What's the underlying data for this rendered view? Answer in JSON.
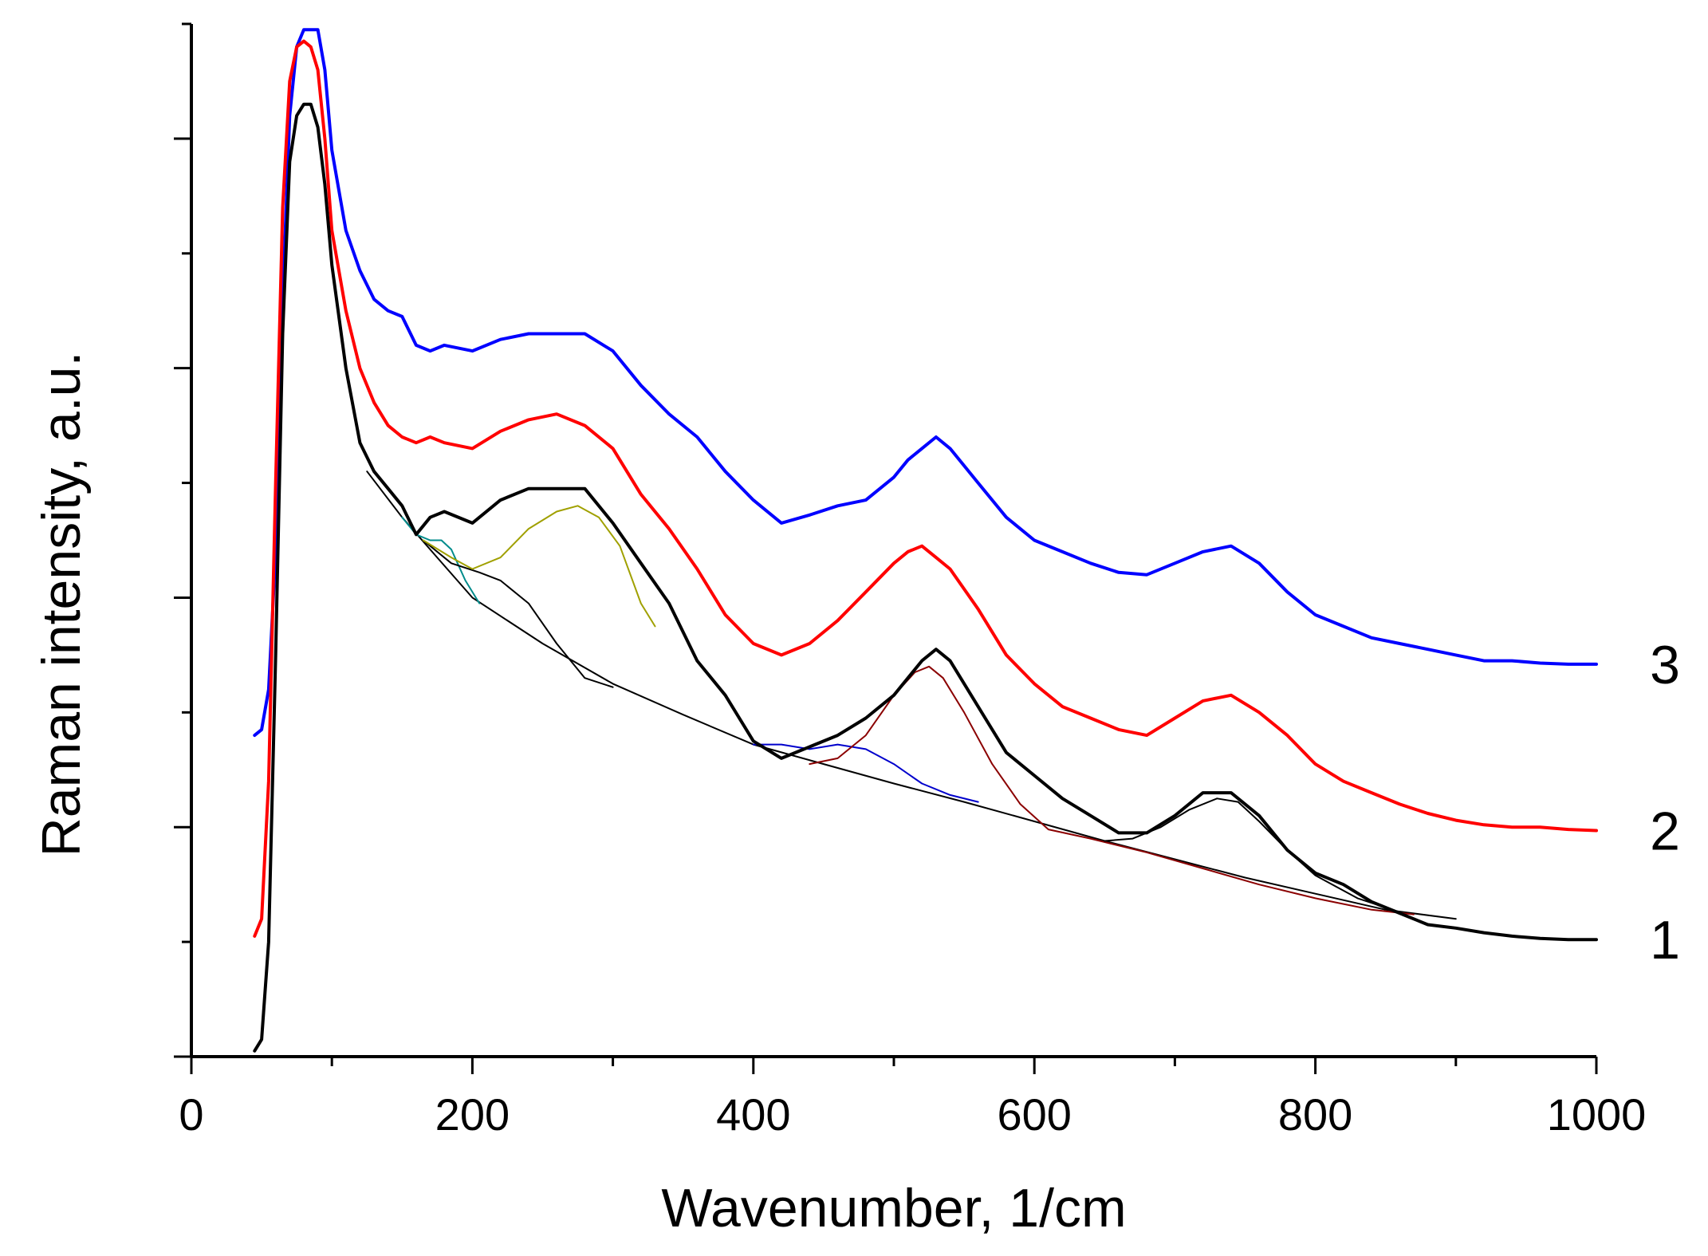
{
  "chart_data": {
    "type": "line",
    "title": "",
    "xlabel": "Wavenumber, 1/cm",
    "ylabel": "Raman intensity, a.u.",
    "xlim": [
      0,
      1000
    ],
    "ylim": [
      0,
      9
    ],
    "x_ticks": [
      0,
      200,
      400,
      600,
      800,
      1000
    ],
    "x_tick_labels": [
      "0",
      "200",
      "400",
      "600",
      "800",
      "1000"
    ],
    "x_minor_step": 100,
    "y_ticks": [
      0,
      1,
      2,
      3,
      4,
      5,
      6,
      7,
      8,
      9
    ],
    "y_tick_labels_shown": false,
    "series": [
      {
        "name": "3",
        "label": "3",
        "color": "#0000ff",
        "x": [
          45,
          50,
          55,
          60,
          65,
          70,
          75,
          80,
          85,
          90,
          95,
          100,
          110,
          120,
          130,
          140,
          150,
          160,
          170,
          180,
          200,
          220,
          240,
          260,
          280,
          300,
          320,
          340,
          360,
          380,
          400,
          420,
          440,
          460,
          480,
          500,
          510,
          520,
          530,
          540,
          560,
          580,
          600,
          620,
          640,
          660,
          680,
          700,
          720,
          740,
          760,
          780,
          800,
          820,
          840,
          860,
          880,
          900,
          920,
          940,
          960,
          980,
          1000
        ],
        "y": [
          2.8,
          2.85,
          3.2,
          4.4,
          6.6,
          8.2,
          8.8,
          8.95,
          8.95,
          8.95,
          8.6,
          7.9,
          7.2,
          6.85,
          6.6,
          6.5,
          6.45,
          6.2,
          6.15,
          6.2,
          6.15,
          6.25,
          6.3,
          6.3,
          6.3,
          6.15,
          5.85,
          5.6,
          5.4,
          5.1,
          4.85,
          4.65,
          4.72,
          4.8,
          4.85,
          5.05,
          5.2,
          5.3,
          5.4,
          5.3,
          5.0,
          4.7,
          4.5,
          4.4,
          4.3,
          4.22,
          4.2,
          4.3,
          4.4,
          4.45,
          4.3,
          4.05,
          3.85,
          3.75,
          3.65,
          3.6,
          3.55,
          3.5,
          3.45,
          3.45,
          3.43,
          3.42,
          3.42
        ]
      },
      {
        "name": "2",
        "label": "2",
        "color": "#ff0000",
        "x": [
          45,
          50,
          55,
          60,
          65,
          70,
          75,
          80,
          85,
          90,
          95,
          100,
          110,
          120,
          130,
          140,
          150,
          160,
          170,
          180,
          200,
          220,
          240,
          260,
          280,
          300,
          320,
          340,
          360,
          380,
          400,
          420,
          440,
          460,
          480,
          500,
          510,
          520,
          530,
          540,
          560,
          580,
          600,
          620,
          640,
          660,
          680,
          700,
          720,
          740,
          760,
          780,
          800,
          820,
          840,
          860,
          880,
          900,
          920,
          940,
          960,
          980,
          1000
        ],
        "y": [
          1.05,
          1.2,
          2.4,
          5.0,
          7.4,
          8.5,
          8.8,
          8.85,
          8.8,
          8.6,
          8.0,
          7.2,
          6.5,
          6.0,
          5.7,
          5.5,
          5.4,
          5.35,
          5.4,
          5.35,
          5.3,
          5.45,
          5.55,
          5.6,
          5.5,
          5.3,
          4.9,
          4.6,
          4.25,
          3.85,
          3.6,
          3.5,
          3.6,
          3.8,
          4.05,
          4.3,
          4.4,
          4.45,
          4.35,
          4.25,
          3.9,
          3.5,
          3.25,
          3.05,
          2.95,
          2.85,
          2.8,
          2.95,
          3.1,
          3.15,
          3.0,
          2.8,
          2.55,
          2.4,
          2.3,
          2.2,
          2.12,
          2.06,
          2.02,
          2.0,
          2.0,
          1.98,
          1.97
        ]
      },
      {
        "name": "1",
        "label": "1",
        "color": "#000000",
        "x": [
          45,
          50,
          55,
          60,
          65,
          70,
          75,
          80,
          85,
          90,
          95,
          100,
          110,
          120,
          130,
          140,
          150,
          160,
          170,
          180,
          200,
          220,
          240,
          260,
          280,
          300,
          320,
          340,
          360,
          380,
          400,
          420,
          440,
          460,
          480,
          500,
          510,
          520,
          530,
          540,
          560,
          580,
          600,
          620,
          640,
          660,
          680,
          700,
          720,
          740,
          760,
          780,
          800,
          820,
          840,
          860,
          880,
          900,
          920,
          940,
          960,
          980,
          1000
        ],
        "y": [
          0.05,
          0.15,
          1.0,
          3.5,
          6.3,
          7.8,
          8.2,
          8.3,
          8.3,
          8.1,
          7.6,
          6.9,
          6.0,
          5.35,
          5.1,
          4.95,
          4.8,
          4.55,
          4.7,
          4.75,
          4.65,
          4.85,
          4.95,
          4.95,
          4.95,
          4.65,
          4.3,
          3.95,
          3.45,
          3.15,
          2.75,
          2.6,
          2.7,
          2.8,
          2.95,
          3.15,
          3.3,
          3.45,
          3.55,
          3.45,
          3.05,
          2.65,
          2.45,
          2.25,
          2.1,
          1.95,
          1.95,
          2.1,
          2.3,
          2.3,
          2.1,
          1.8,
          1.6,
          1.5,
          1.35,
          1.25,
          1.15,
          1.12,
          1.08,
          1.05,
          1.03,
          1.02,
          1.02
        ]
      }
    ],
    "fit_components": [
      {
        "name": "baseline",
        "color": "#000000",
        "x": [
          125,
          150,
          175,
          200,
          250,
          300,
          350,
          400,
          450,
          500,
          550,
          600,
          650,
          700,
          750,
          800,
          850,
          900
        ],
        "y": [
          5.1,
          4.7,
          4.35,
          4.0,
          3.6,
          3.25,
          2.98,
          2.72,
          2.55,
          2.38,
          2.22,
          2.05,
          1.88,
          1.72,
          1.56,
          1.42,
          1.28,
          1.2
        ]
      },
      {
        "name": "peak-175",
        "color": "#008b8b",
        "x": [
          150,
          160,
          170,
          178,
          185,
          195,
          205
        ],
        "y": [
          4.7,
          4.55,
          4.5,
          4.5,
          4.42,
          4.15,
          3.95
        ]
      },
      {
        "name": "peak-215",
        "color": "#000000",
        "x": [
          165,
          185,
          205,
          220,
          240,
          260,
          280,
          300
        ],
        "y": [
          4.5,
          4.3,
          4.22,
          4.15,
          3.95,
          3.6,
          3.3,
          3.22
        ]
      },
      {
        "name": "peak-270",
        "color": "#a0a000",
        "x": [
          165,
          185,
          200,
          220,
          240,
          260,
          275,
          290,
          305,
          320,
          330
        ],
        "y": [
          4.5,
          4.35,
          4.25,
          4.35,
          4.6,
          4.75,
          4.8,
          4.7,
          4.45,
          3.95,
          3.75
        ]
      },
      {
        "name": "peak-460",
        "color": "#0000cc",
        "x": [
          400,
          420,
          440,
          460,
          480,
          500,
          520,
          540,
          560
        ],
        "y": [
          2.72,
          2.72,
          2.68,
          2.72,
          2.68,
          2.55,
          2.38,
          2.28,
          2.22
        ]
      },
      {
        "name": "peak-525",
        "color": "#8b0000",
        "x": [
          440,
          460,
          480,
          500,
          515,
          525,
          535,
          550,
          570,
          590,
          610,
          640,
          680,
          720,
          760,
          800,
          840,
          870
        ],
        "y": [
          2.55,
          2.6,
          2.8,
          3.15,
          3.35,
          3.4,
          3.3,
          3.0,
          2.55,
          2.2,
          1.98,
          1.9,
          1.78,
          1.64,
          1.5,
          1.38,
          1.28,
          1.24
        ]
      },
      {
        "name": "peak-730",
        "color": "#000000",
        "x": [
          650,
          670,
          690,
          710,
          730,
          745,
          760,
          780,
          800,
          830,
          860
        ],
        "y": [
          1.88,
          1.9,
          2.0,
          2.15,
          2.25,
          2.22,
          2.05,
          1.8,
          1.58,
          1.38,
          1.26
        ]
      }
    ]
  }
}
